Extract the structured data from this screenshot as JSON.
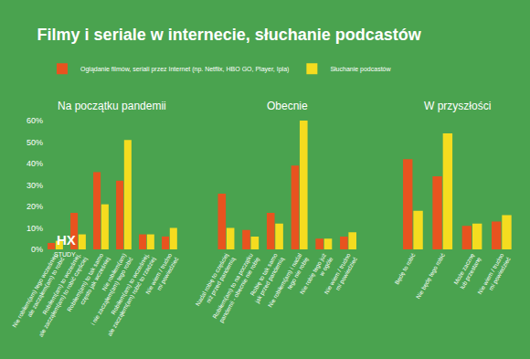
{
  "title": "Filmy i seriale w internecie, słuchanie podcastów",
  "logo": {
    "text": "HX",
    "subtext": "STUDY"
  },
  "chart_data": [
    {
      "type": "bar",
      "title": "Na początku pandemii",
      "categories": [
        "Nie robiłem(am) tego wcześniej,\nale zacząłem(am) to robić",
        "Robiłem(am) to wcześniej,\nale zacząłem(am) to robić częściej",
        "Robiłem(am) to tak samo\nczęsto jak wcześniej",
        "Nie robiłem(am)\ni nie zacząłem(am) tego robić",
        "Robiłem(am) to wcześniej,\nale zacząłem(am) robić to rzadziej",
        "Nie wiem / trudno\nmi powiedzieć"
      ],
      "series": [
        {
          "name": "Oglądanie filmów, seriali przez Internet (np. Netflix, HBO GO, Player, Ipla)",
          "color": "#e8531f",
          "values": [
            3,
            17,
            36,
            32,
            7,
            6
          ]
        },
        {
          "name": "Słuchanie podcastów",
          "color": "#f5dc1f",
          "values": [
            4,
            7,
            21,
            51,
            7,
            10
          ]
        }
      ],
      "ylim": [
        0,
        60
      ],
      "yticks": [
        {
          "value": 0,
          "label": "0%"
        },
        {
          "value": 10,
          "label": "10%"
        },
        {
          "value": 20,
          "label": "20%"
        },
        {
          "value": 30,
          "label": "30%"
        },
        {
          "value": 40,
          "label": "40%"
        },
        {
          "value": 50,
          "label": "50%"
        },
        {
          "value": 60,
          "label": "60%"
        }
      ],
      "grid": false,
      "legend": "top left"
    },
    {
      "type": "bar",
      "title": "Obecnie",
      "categories": [
        "Nadal robię to częściej\nniż przed pandemią",
        "Robiłem(am) to na początku\npandemii - obecnie nie robię",
        "Robię to tak samo\njak przed pandemią",
        "Nie robiłem(am) i nadal\ntego nie robię",
        "Nie robię tego już\nw ogóle",
        "Nie wiem / trudno\nmi powiedzieć"
      ],
      "series": [
        {
          "name": "Oglądanie filmów, seriali przez Internet (np. Netflix, HBO GO, Player, Ipla)",
          "color": "#e8531f",
          "values": [
            26,
            9,
            17,
            39,
            5,
            6
          ]
        },
        {
          "name": "Słuchanie podcastów",
          "color": "#f5dc1f",
          "values": [
            10,
            6,
            12,
            60,
            5,
            8
          ]
        }
      ],
      "ylim": [
        0,
        60
      ],
      "yticks": [
        0,
        10,
        20,
        30,
        40,
        50,
        60
      ],
      "grid": false,
      "tick_labels": "x"
    },
    {
      "type": "bar",
      "title": "W przyszłości",
      "categories": [
        "Będę to robić",
        "Nie będę tego robić",
        "Może zacznę\nlub przestanę",
        "Nie wiem / trudno\nmi powiedzieć"
      ],
      "series": [
        {
          "name": "Oglądanie filmów, seriali przez Internet (np. Netflix, HBO GO, Player, Ipla)",
          "color": "#e8531f",
          "values": [
            42,
            34,
            11,
            13
          ]
        },
        {
          "name": "Słuchanie podcastów",
          "color": "#f5dc1f",
          "values": [
            18,
            54,
            12,
            16
          ]
        }
      ],
      "ylim": [
        0,
        60
      ],
      "yticks": [
        0,
        10,
        20,
        30,
        40,
        50,
        60
      ],
      "grid": false,
      "tick_labels": "x"
    }
  ]
}
